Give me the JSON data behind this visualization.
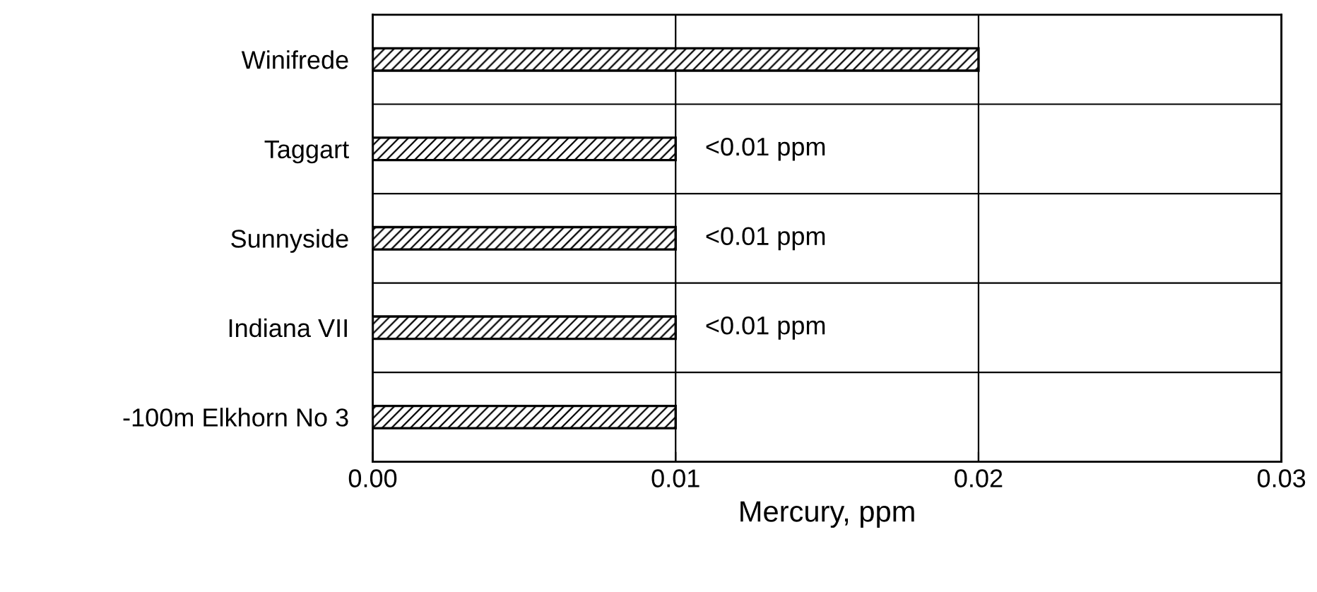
{
  "chart_data": {
    "type": "bar",
    "orientation": "horizontal",
    "categories": [
      "Winifrede",
      "Taggart",
      "Sunnyside",
      "Indiana VII",
      "-100m Elkhorn No 3"
    ],
    "values": [
      0.02,
      0.01,
      0.01,
      0.01,
      0.01
    ],
    "color": "#000000",
    "xlabel": "Mercury, ppm",
    "xlim": [
      0,
      0.03
    ],
    "xticks": [
      {
        "value": 0,
        "label": "0.00"
      },
      {
        "value": 0.01,
        "label": "0.01"
      },
      {
        "value": 0.02,
        "label": "0.02"
      },
      {
        "value": 0.03,
        "label": "0.03"
      }
    ],
    "grid": true,
    "value_labels": [
      null,
      "<0.01 ppm",
      "<0.01 ppm",
      "<0.01 ppm",
      null
    ]
  }
}
